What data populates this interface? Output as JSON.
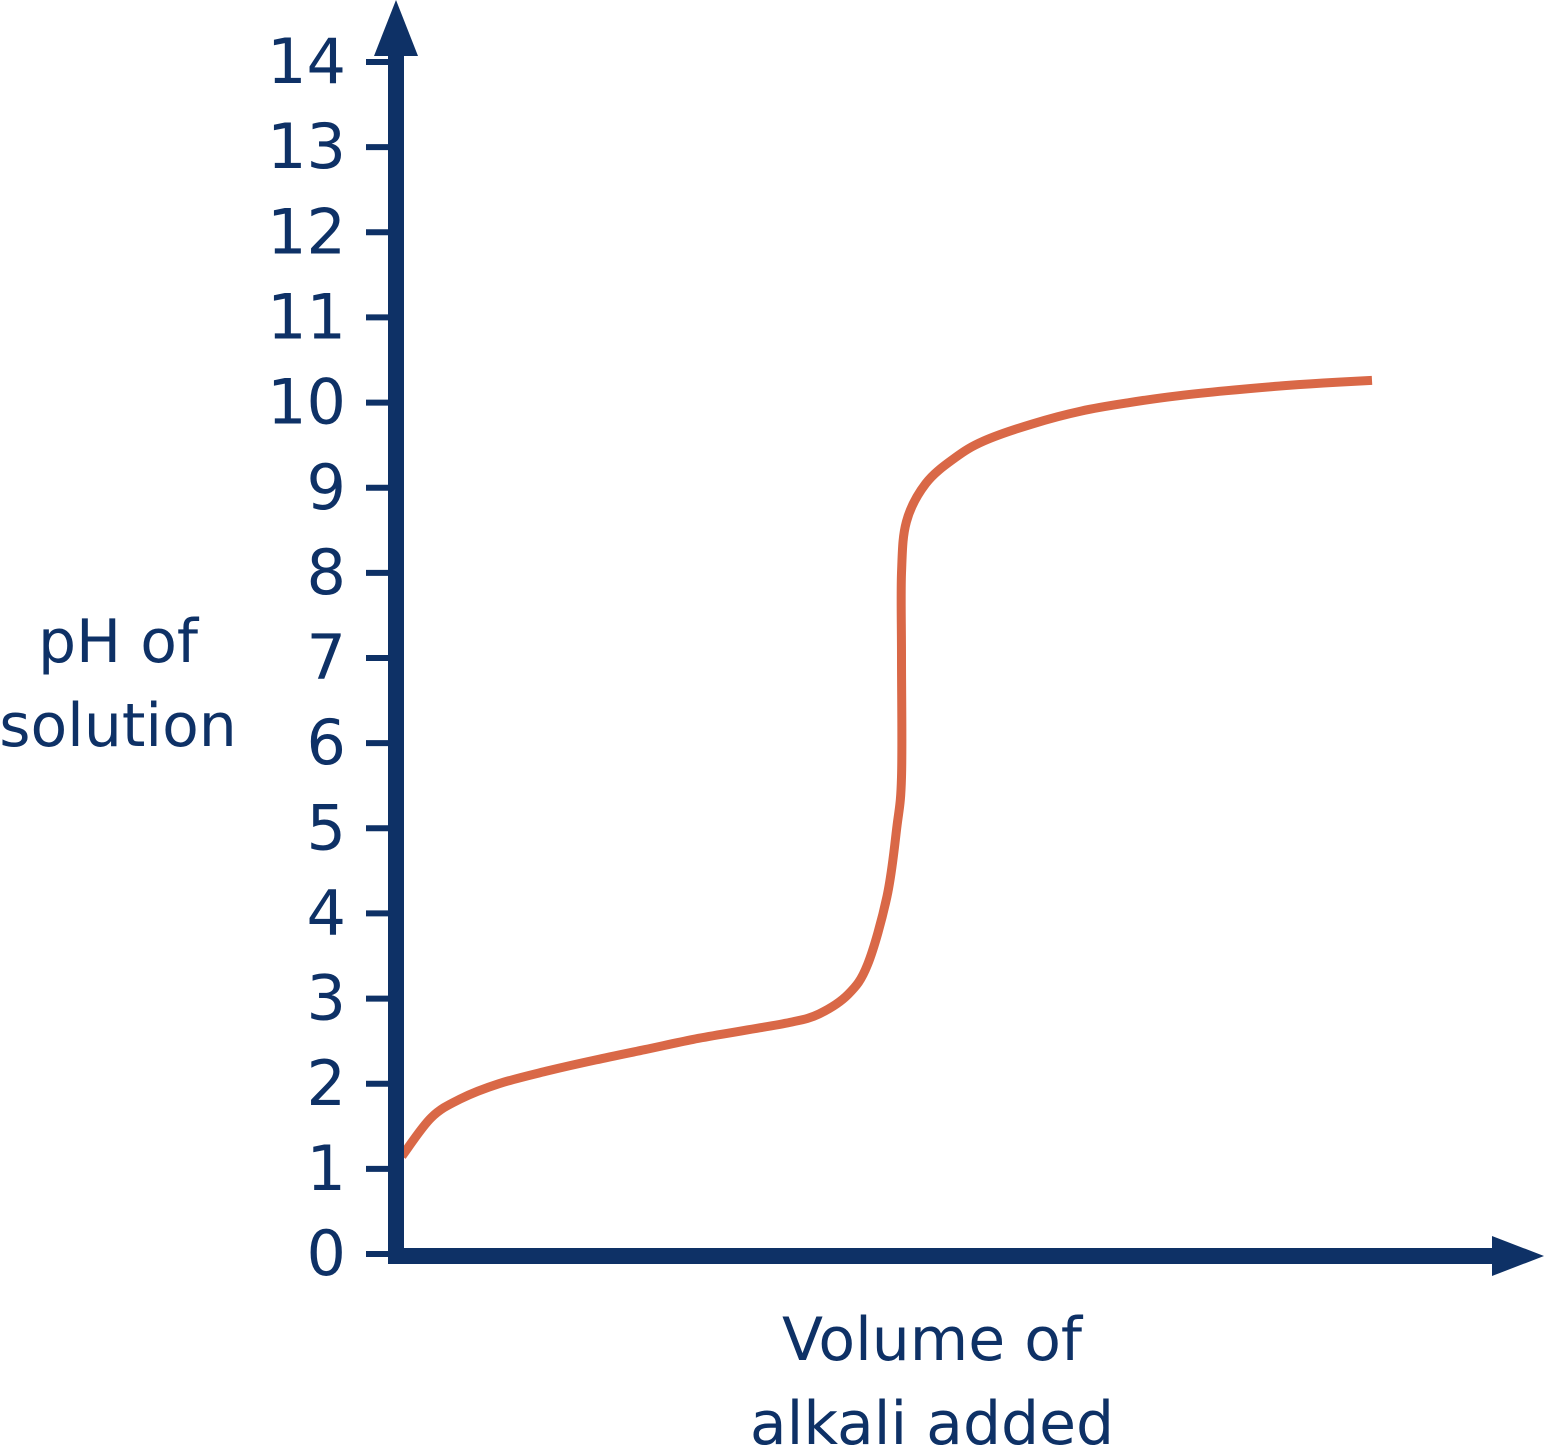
{
  "colors": {
    "axis": "#0e3166",
    "curve": "#d96847",
    "background": "#ffffff"
  },
  "chart_data": {
    "type": "line",
    "title": "",
    "ylabel_lines": [
      "pH of",
      "solution"
    ],
    "xlabel_lines": [
      "Volume of",
      "alkali added"
    ],
    "ylim": [
      0,
      14
    ],
    "xlim": [
      0,
      10
    ],
    "y_ticks": [
      "0",
      "1",
      "2",
      "3",
      "4",
      "5",
      "6",
      "7",
      "8",
      "9",
      "10",
      "11",
      "12",
      "13",
      "14"
    ],
    "x_ticks": [],
    "grid": false,
    "legend": "none",
    "series": [
      {
        "x": [
          0,
          0.3,
          0.6,
          1.0,
          1.5,
          2.0,
          2.5,
          3.0,
          3.5,
          4.0,
          4.3,
          4.6,
          4.8,
          5.0,
          5.1,
          5.15,
          5.15,
          5.15,
          5.2,
          5.4,
          5.7,
          6.0,
          6.5,
          7.0,
          7.5,
          8.0,
          8.5,
          9.0,
          9.5,
          10.0
        ],
        "y": [
          1.15,
          1.6,
          1.82,
          2.0,
          2.15,
          2.28,
          2.4,
          2.52,
          2.62,
          2.72,
          2.82,
          3.05,
          3.4,
          4.2,
          5.0,
          5.6,
          7.0,
          8.0,
          8.6,
          9.05,
          9.35,
          9.55,
          9.75,
          9.9,
          10.0,
          10.08,
          10.14,
          10.19,
          10.23,
          10.26
        ]
      }
    ]
  }
}
